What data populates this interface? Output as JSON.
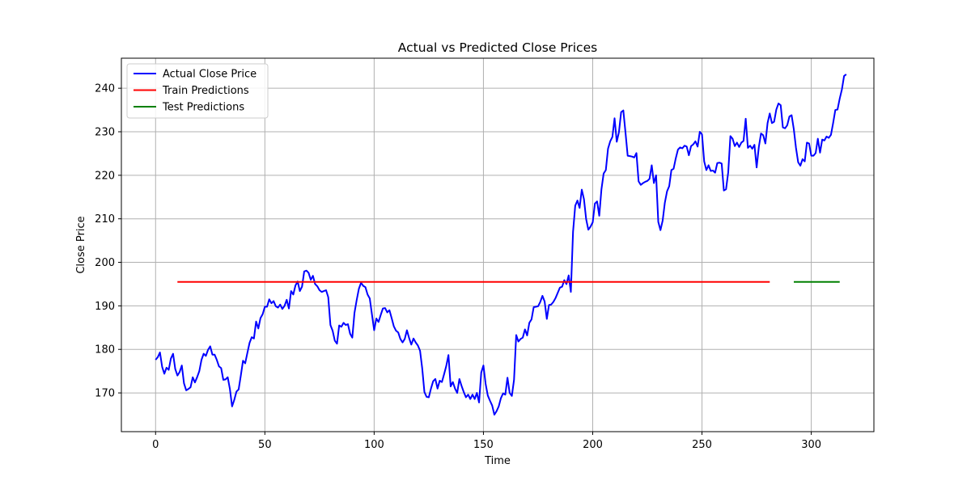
{
  "chart_data": {
    "type": "line",
    "title": "Actual vs Predicted Close Prices",
    "xlabel": "Time",
    "ylabel": "Close Price",
    "xlim": [
      -15.65,
      328.65
    ],
    "ylim": [
      161.1,
      246.9
    ],
    "xticks": [
      0,
      50,
      100,
      150,
      200,
      250,
      300
    ],
    "yticks": [
      170,
      180,
      190,
      200,
      210,
      220,
      230,
      240
    ],
    "grid": true,
    "legend_position": "top-left",
    "series": [
      {
        "name": "Actual Close Price",
        "color": "#0000ff",
        "x_start": 0,
        "values": [
          177.6,
          178.2,
          179.3,
          176.0,
          174.4,
          175.8,
          175.3,
          177.9,
          179.0,
          175.5,
          174.0,
          174.8,
          176.3,
          172.2,
          170.6,
          170.9,
          171.3,
          173.6,
          172.4,
          173.6,
          175.0,
          177.6,
          179.0,
          178.5,
          179.9,
          180.7,
          178.8,
          178.8,
          177.6,
          176.1,
          175.7,
          173.0,
          173.1,
          173.6,
          170.9,
          166.9,
          168.4,
          170.3,
          170.8,
          174.0,
          177.4,
          176.8,
          179.2,
          181.5,
          182.8,
          182.5,
          186.4,
          184.8,
          187.2,
          188.1,
          189.8,
          189.8,
          191.5,
          190.6,
          191.1,
          189.9,
          189.6,
          190.3,
          189.3,
          190.0,
          191.4,
          189.4,
          193.4,
          192.6,
          194.7,
          195.6,
          193.4,
          194.4,
          197.9,
          198.1,
          197.6,
          196.0,
          196.9,
          195.0,
          194.5,
          193.6,
          193.2,
          193.4,
          193.6,
          192.0,
          185.6,
          184.3,
          182.0,
          181.3,
          185.5,
          185.2,
          186.1,
          185.6,
          185.8,
          183.6,
          182.7,
          188.4,
          191.3,
          193.9,
          195.3,
          194.6,
          194.3,
          192.6,
          191.7,
          188.0,
          184.4,
          187.1,
          186.3,
          187.9,
          189.4,
          189.5,
          188.5,
          189.0,
          187.2,
          185.3,
          184.3,
          183.9,
          182.4,
          181.6,
          182.4,
          184.4,
          182.6,
          181.1,
          182.5,
          181.6,
          180.9,
          179.7,
          175.6,
          170.2,
          169.1,
          169.0,
          171.0,
          172.7,
          173.2,
          171.0,
          172.8,
          172.5,
          174.3,
          176.2,
          178.7,
          171.5,
          172.5,
          171.0,
          170.0,
          173.2,
          171.6,
          170.2,
          169.0,
          169.6,
          168.6,
          169.6,
          168.6,
          170.0,
          167.8,
          174.7,
          176.3,
          172.1,
          169.4,
          168.2,
          167.1,
          165.0,
          165.8,
          166.9,
          168.8,
          169.9,
          169.6,
          173.5,
          170.0,
          169.3,
          173.0,
          183.3,
          181.8,
          182.4,
          182.7,
          184.6,
          183.2,
          186.1,
          186.9,
          189.7,
          189.8,
          189.9,
          190.9,
          192.3,
          191.0,
          187.0,
          190.2,
          190.3,
          190.9,
          191.8,
          193.0,
          194.2,
          194.4,
          195.9,
          195.0,
          197.0,
          193.2,
          207.0,
          213.0,
          214.2,
          212.5,
          216.7,
          214.5,
          209.9,
          207.5,
          208.2,
          209.2,
          213.5,
          214.0,
          210.7,
          216.8,
          220.4,
          221.2,
          226.1,
          227.8,
          228.8,
          233.1,
          227.7,
          229.9,
          234.5,
          234.9,
          229.8,
          224.5,
          224.4,
          224.3,
          224.1,
          225.1,
          218.6,
          217.8,
          218.2,
          218.5,
          218.7,
          219.2,
          222.3,
          218.2,
          220.0,
          209.3,
          207.4,
          209.6,
          213.7,
          216.3,
          217.5,
          221.2,
          221.5,
          223.9,
          225.9,
          226.4,
          226.2,
          226.8,
          226.6,
          224.6,
          226.7,
          227.1,
          227.8,
          226.6,
          230.0,
          229.4,
          223.2,
          221.2,
          222.3,
          221.0,
          221.1,
          220.6,
          222.8,
          222.9,
          222.7,
          216.5,
          216.8,
          220.7,
          229.0,
          228.4,
          226.7,
          227.5,
          226.5,
          227.5,
          227.9,
          233.0,
          226.3,
          226.8,
          226.1,
          227.0,
          221.8,
          226.5,
          229.6,
          229.2,
          227.3,
          232.0,
          234.2,
          232.0,
          232.3,
          235.1,
          236.5,
          236.1,
          231.0,
          230.8,
          231.5,
          233.5,
          233.8,
          230.6,
          226.3,
          223.0,
          222.2,
          223.7,
          223.2,
          227.5,
          227.3,
          224.5,
          224.5,
          225.1,
          228.4,
          225.2,
          228.2,
          228.0,
          228.9,
          228.6,
          229.3,
          232.0,
          235.0,
          235.1,
          237.6,
          239.7,
          242.8,
          243.2
        ]
      },
      {
        "name": "Train Predictions",
        "color": "#ff0000",
        "x": [
          10,
          281
        ],
        "values": [
          195.5,
          195.5
        ]
      },
      {
        "name": "Test Predictions",
        "color": "#008000",
        "x": [
          292,
          313
        ],
        "values": [
          195.5,
          195.5
        ]
      }
    ]
  }
}
